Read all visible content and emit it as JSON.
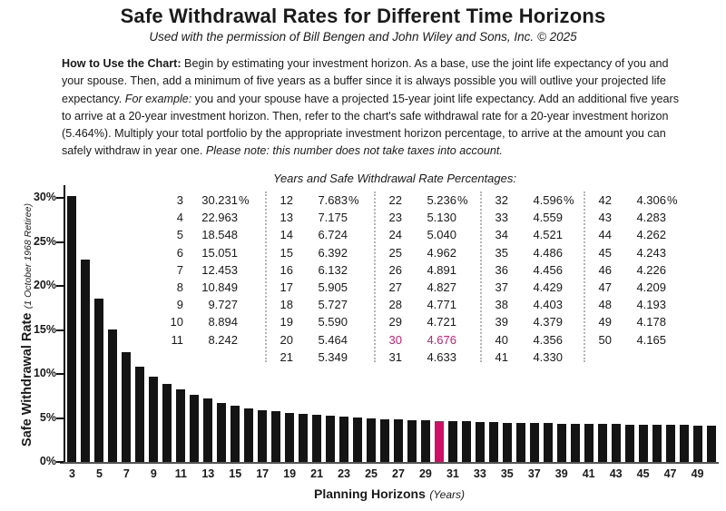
{
  "title": "Safe Withdrawal Rates for Different Time Horizons",
  "subtitle": "Used with the permission of Bill Bengen and John Wiley and Sons, Inc. © 2025",
  "howto": {
    "segments": [
      {
        "text": "How to Use the Chart: ",
        "style": "bold"
      },
      {
        "text": "Begin by estimating your investment horizon. As a base, use the joint life expectancy of you and your spouse. Then, add a minimum of five years as a buffer since it is always possible you will outlive your projected life expectancy. ",
        "style": "normal"
      },
      {
        "text": "For example: ",
        "style": "italic"
      },
      {
        "text": "you and your spouse have a projected 15-year joint life expectancy. Add an additional five years to arrive at a 20-year investment horizon. Then, refer to the chart's safe withdrawal rate for a 20-year investment horizon (5.464%). Multiply your total portfolio by the appropriate investment horizon percentage, to arrive at the amount you can safely withdraw in year one. ",
        "style": "normal"
      },
      {
        "text": "Please note: this number does not take taxes into account.",
        "style": "italic"
      }
    ]
  },
  "table": {
    "title": "Years and Safe Withdrawal Rate Percentages:",
    "highlight_year": "30",
    "highlight_color": "#C81E6E",
    "columns": [
      {
        "rows": [
          [
            "3",
            "30.231",
            "%"
          ],
          [
            "4",
            "22.963",
            ""
          ],
          [
            "5",
            "18.548",
            ""
          ],
          [
            "6",
            "15.051",
            ""
          ],
          [
            "7",
            "12.453",
            ""
          ],
          [
            "8",
            "10.849",
            ""
          ],
          [
            "9",
            "9.727",
            ""
          ],
          [
            "10",
            "8.894",
            ""
          ],
          [
            "11",
            "8.242",
            ""
          ]
        ]
      },
      {
        "rows": [
          [
            "12",
            "7.683",
            "%"
          ],
          [
            "13",
            "7.175",
            ""
          ],
          [
            "14",
            "6.724",
            ""
          ],
          [
            "15",
            "6.392",
            ""
          ],
          [
            "16",
            "6.132",
            ""
          ],
          [
            "17",
            "5.905",
            ""
          ],
          [
            "18",
            "5.727",
            ""
          ],
          [
            "19",
            "5.590",
            ""
          ],
          [
            "20",
            "5.464",
            ""
          ],
          [
            "21",
            "5.349",
            ""
          ]
        ]
      },
      {
        "rows": [
          [
            "22",
            "5.236",
            "%"
          ],
          [
            "23",
            "5.130",
            ""
          ],
          [
            "24",
            "5.040",
            ""
          ],
          [
            "25",
            "4.962",
            ""
          ],
          [
            "26",
            "4.891",
            ""
          ],
          [
            "27",
            "4.827",
            ""
          ],
          [
            "28",
            "4.771",
            ""
          ],
          [
            "29",
            "4.721",
            ""
          ],
          [
            "30",
            "4.676",
            ""
          ],
          [
            "31",
            "4.633",
            ""
          ]
        ]
      },
      {
        "rows": [
          [
            "32",
            "4.596",
            "%"
          ],
          [
            "33",
            "4.559",
            ""
          ],
          [
            "34",
            "4.521",
            ""
          ],
          [
            "35",
            "4.486",
            ""
          ],
          [
            "36",
            "4.456",
            ""
          ],
          [
            "37",
            "4.429",
            ""
          ],
          [
            "38",
            "4.403",
            ""
          ],
          [
            "39",
            "4.379",
            ""
          ],
          [
            "40",
            "4.356",
            ""
          ],
          [
            "41",
            "4.330",
            ""
          ]
        ]
      },
      {
        "rows": [
          [
            "42",
            "4.306",
            "%"
          ],
          [
            "43",
            "4.283",
            ""
          ],
          [
            "44",
            "4.262",
            ""
          ],
          [
            "45",
            "4.243",
            ""
          ],
          [
            "46",
            "4.226",
            ""
          ],
          [
            "47",
            "4.209",
            ""
          ],
          [
            "48",
            "4.193",
            ""
          ],
          [
            "49",
            "4.178",
            ""
          ],
          [
            "50",
            "4.165",
            ""
          ]
        ]
      }
    ]
  },
  "chart_data": {
    "type": "bar",
    "x": [
      3,
      4,
      5,
      6,
      7,
      8,
      9,
      10,
      11,
      12,
      13,
      14,
      15,
      16,
      17,
      18,
      19,
      20,
      21,
      22,
      23,
      24,
      25,
      26,
      27,
      28,
      29,
      30,
      31,
      32,
      33,
      34,
      35,
      36,
      37,
      38,
      39,
      40,
      41,
      42,
      43,
      44,
      45,
      46,
      47,
      48,
      49,
      50
    ],
    "values": [
      30.231,
      22.963,
      18.548,
      15.051,
      12.453,
      10.849,
      9.727,
      8.894,
      8.242,
      7.683,
      7.175,
      6.724,
      6.392,
      6.132,
      5.905,
      5.727,
      5.59,
      5.464,
      5.349,
      5.236,
      5.13,
      5.04,
      4.962,
      4.891,
      4.827,
      4.771,
      4.721,
      4.676,
      4.633,
      4.596,
      4.559,
      4.521,
      4.486,
      4.456,
      4.429,
      4.403,
      4.379,
      4.356,
      4.33,
      4.306,
      4.283,
      4.262,
      4.243,
      4.226,
      4.209,
      4.193,
      4.178,
      4.165
    ],
    "highlight_x": 30,
    "bar_color": "#141414",
    "highlight_color": "#CE1166",
    "ylabel": "Safe Withdrawal Rate",
    "ylabel_note": "(1 October 1968 Retiree)",
    "xlabel": "Planning Horizons",
    "xlabel_note": "(Years)",
    "yticks": [
      {
        "label": "0%",
        "value": 0
      },
      {
        "label": "5%",
        "value": 5
      },
      {
        "label": "10%",
        "value": 10
      },
      {
        "label": "15%",
        "value": 15
      },
      {
        "label": "20%",
        "value": 20
      },
      {
        "label": "25%",
        "value": 25
      },
      {
        "label": "30%",
        "value": 30
      }
    ],
    "xtick_years": [
      3,
      5,
      7,
      9,
      11,
      13,
      15,
      17,
      19,
      21,
      23,
      25,
      27,
      29,
      31,
      33,
      35,
      37,
      39,
      41,
      43,
      45,
      47,
      49
    ],
    "ylim": [
      0,
      31.35
    ],
    "grid": false,
    "legend": "none"
  }
}
